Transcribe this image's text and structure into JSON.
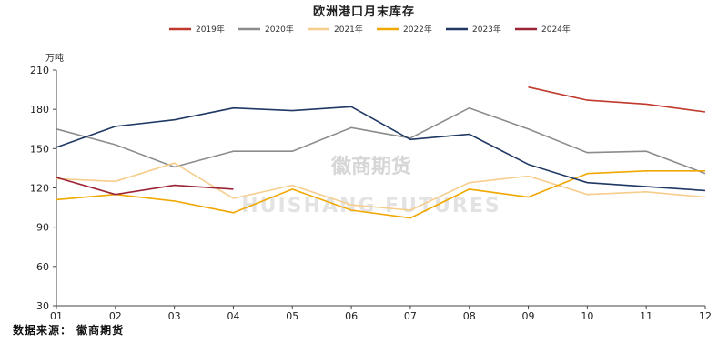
{
  "chart_data": {
    "type": "line",
    "title": "欧洲港口月末库存",
    "unit": "万吨",
    "categories": [
      "01",
      "02",
      "03",
      "04",
      "05",
      "06",
      "07",
      "08",
      "09",
      "10",
      "11",
      "12"
    ],
    "ylim": [
      30,
      210
    ],
    "yticks": [
      30,
      60,
      90,
      120,
      150,
      180,
      210
    ],
    "grid": false,
    "legend_position": "top",
    "series": [
      {
        "name": "2019年",
        "color": "#c0392b",
        "values": [
          null,
          null,
          null,
          null,
          null,
          null,
          null,
          null,
          197,
          187,
          184,
          178
        ]
      },
      {
        "name": "2020年",
        "color": "#8c8c8c",
        "values": [
          165,
          153,
          136,
          148,
          148,
          166,
          158,
          181,
          165,
          147,
          148,
          131
        ]
      },
      {
        "name": "2021年",
        "color": "#f6cd8c",
        "values": [
          127,
          125,
          139,
          112,
          122,
          107,
          103,
          124,
          129,
          115,
          117,
          113
        ]
      },
      {
        "name": "2022年",
        "color": "#f0a800",
        "values": [
          111,
          115,
          110,
          101,
          119,
          103,
          97,
          119,
          113,
          131,
          133,
          133
        ]
      },
      {
        "name": "2023年",
        "color": "#1f3864",
        "values": [
          151,
          167,
          172,
          181,
          179,
          182,
          157,
          161,
          138,
          124,
          121,
          118
        ]
      },
      {
        "name": "2024年",
        "color": "#9b2335",
        "values": [
          128,
          115,
          122,
          119,
          null,
          null,
          null,
          null,
          null,
          null,
          null,
          null
        ]
      }
    ]
  },
  "watermark": {
    "cn": "徽商期货",
    "en": "HUISHANG FUTURES"
  },
  "source": "数据来源： 徽商期货"
}
